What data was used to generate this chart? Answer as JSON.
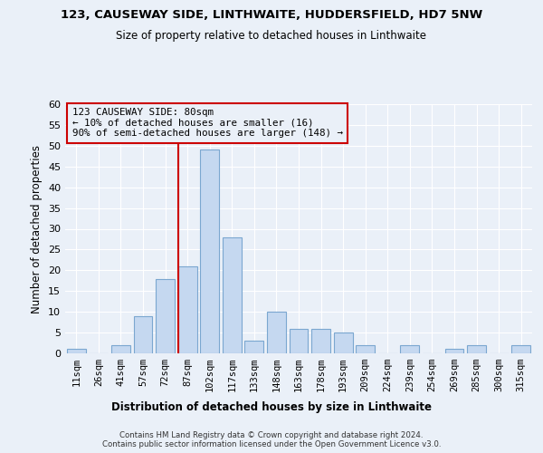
{
  "title": "123, CAUSEWAY SIDE, LINTHWAITE, HUDDERSFIELD, HD7 5NW",
  "subtitle": "Size of property relative to detached houses in Linthwaite",
  "xlabel_bottom": "Distribution of detached houses by size in Linthwaite",
  "ylabel": "Number of detached properties",
  "categories": [
    "11sqm",
    "26sqm",
    "41sqm",
    "57sqm",
    "72sqm",
    "87sqm",
    "102sqm",
    "117sqm",
    "133sqm",
    "148sqm",
    "163sqm",
    "178sqm",
    "193sqm",
    "209sqm",
    "224sqm",
    "239sqm",
    "254sqm",
    "269sqm",
    "285sqm",
    "300sqm",
    "315sqm"
  ],
  "values": [
    1,
    0,
    2,
    9,
    18,
    21,
    49,
    28,
    3,
    10,
    6,
    6,
    5,
    2,
    0,
    2,
    0,
    1,
    2,
    0,
    2
  ],
  "bar_color": "#c5d8f0",
  "bar_edge_color": "#7ba7d0",
  "vline_color": "#cc0000",
  "annotation_text": "123 CAUSEWAY SIDE: 80sqm\n← 10% of detached houses are smaller (16)\n90% of semi-detached houses are larger (148) →",
  "annotation_box_color": "#cc0000",
  "ylim": [
    0,
    60
  ],
  "yticks": [
    0,
    5,
    10,
    15,
    20,
    25,
    30,
    35,
    40,
    45,
    50,
    55,
    60
  ],
  "bg_color": "#eaf0f8",
  "grid_color": "#ffffff",
  "footer_line1": "Contains HM Land Registry data © Crown copyright and database right 2024.",
  "footer_line2": "Contains public sector information licensed under the Open Government Licence v3.0."
}
